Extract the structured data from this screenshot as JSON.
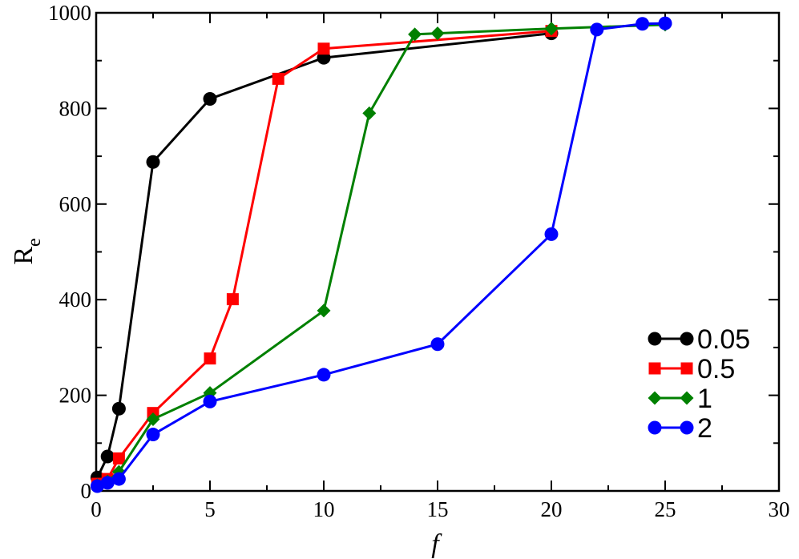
{
  "chart_data": {
    "type": "line",
    "xlabel": "f",
    "ylabel": "R",
    "ylabel_sub": "e",
    "xlim": [
      0,
      30
    ],
    "ylim": [
      0,
      1000
    ],
    "xticks": [
      0,
      5,
      10,
      15,
      20,
      25,
      30
    ],
    "yticks": [
      0,
      200,
      400,
      600,
      800,
      1000
    ],
    "grid": false,
    "legend_position": "bottom-right",
    "series": [
      {
        "name": "0.05",
        "color": "#000000",
        "marker": "circle",
        "x": [
          0.05,
          0.5,
          1,
          2.5,
          5,
          10,
          20
        ],
        "y": [
          28,
          72,
          172,
          688,
          820,
          906,
          957
        ]
      },
      {
        "name": "0.5",
        "color": "#ff0000",
        "marker": "square",
        "x": [
          0.05,
          0.5,
          1,
          2.5,
          5,
          6,
          8,
          10,
          20
        ],
        "y": [
          15,
          25,
          68,
          163,
          277,
          401,
          862,
          925,
          962
        ]
      },
      {
        "name": "1",
        "color": "#008000",
        "marker": "diamond",
        "x": [
          0.05,
          0.5,
          1,
          2.5,
          5,
          10,
          12,
          14,
          15,
          20,
          25
        ],
        "y": [
          12,
          20,
          40,
          150,
          205,
          377,
          790,
          955,
          957,
          967,
          975
        ]
      },
      {
        "name": "2",
        "color": "#0000ff",
        "marker": "circle",
        "x": [
          0.05,
          0.5,
          1,
          2.5,
          5,
          10,
          15,
          20,
          22,
          24,
          25
        ],
        "y": [
          10,
          17,
          25,
          118,
          187,
          243,
          307,
          537,
          965,
          977,
          978
        ]
      }
    ]
  }
}
